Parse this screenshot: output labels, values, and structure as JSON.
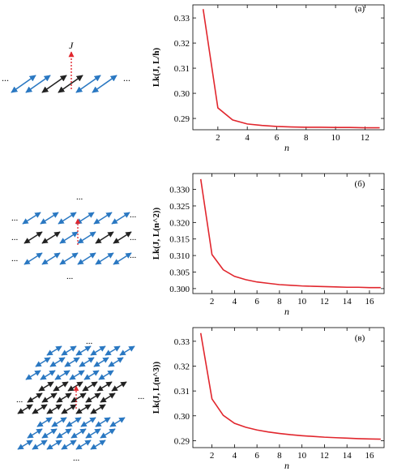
{
  "colors": {
    "curve": "#e1262d",
    "blue": "#2a78c2",
    "dark": "#222222",
    "red": "#e1262d",
    "axis": "#000000"
  },
  "lattice_labels": {
    "j_label": "J",
    "ellipsis": "..."
  },
  "chart_data": [
    {
      "type": "line",
      "panel_label": "(а)",
      "title": "",
      "xlabel": "n",
      "ylabel": "Lk(J, L/h)",
      "xlim": [
        0.3,
        13.3
      ],
      "ylim": [
        0.2855,
        0.3352
      ],
      "xticks": [
        2,
        4,
        6,
        8,
        10,
        12
      ],
      "yticks": [
        0.29,
        0.3,
        0.31,
        0.32,
        0.33
      ],
      "ytick_labels": [
        "0.29",
        "0.30",
        "0.31",
        "0.32",
        "0.33"
      ],
      "series": [
        {
          "x": [
            1,
            2,
            3,
            4,
            5,
            6,
            7,
            8,
            9,
            10,
            11,
            12,
            13
          ],
          "y": [
            0.3335,
            0.2942,
            0.2894,
            0.2878,
            0.2872,
            0.2868,
            0.2866,
            0.2865,
            0.2865,
            0.2864,
            0.2864,
            0.2863,
            0.2863
          ]
        }
      ]
    },
    {
      "type": "line",
      "panel_label": "(б)",
      "title": "",
      "xlabel": "n",
      "ylabel": "Lk(J, L(n^2))",
      "xlim": [
        0.3,
        17.3
      ],
      "ylim": [
        0.2985,
        0.3348
      ],
      "xticks": [
        2,
        4,
        6,
        8,
        10,
        12,
        14,
        16
      ],
      "yticks": [
        0.3,
        0.305,
        0.31,
        0.315,
        0.32,
        0.325,
        0.33
      ],
      "ytick_labels": [
        "0.300",
        "0.305",
        "0.310",
        "0.315",
        "0.320",
        "0.325",
        "0.330"
      ],
      "series": [
        {
          "x": [
            1,
            2,
            3,
            4,
            5,
            6,
            7,
            8,
            9,
            10,
            11,
            12,
            13,
            14,
            15,
            16,
            17
          ],
          "y": [
            0.3331,
            0.3103,
            0.3057,
            0.3037,
            0.3027,
            0.302,
            0.3016,
            0.3012,
            0.301,
            0.3008,
            0.3007,
            0.3006,
            0.3005,
            0.3004,
            0.3004,
            0.3003,
            0.3003
          ]
        }
      ]
    },
    {
      "type": "line",
      "panel_label": "(в)",
      "title": "",
      "xlabel": "n",
      "ylabel": "Lk(J, L(n^3))",
      "xlim": [
        0.3,
        17.3
      ],
      "ylim": [
        0.2872,
        0.3355
      ],
      "xticks": [
        2,
        4,
        6,
        8,
        10,
        12,
        14,
        16
      ],
      "yticks": [
        0.29,
        0.3,
        0.31,
        0.32,
        0.33
      ],
      "ytick_labels": [
        "0.29",
        "0.30",
        "0.31",
        "0.32",
        "0.33"
      ],
      "series": [
        {
          "x": [
            1,
            2,
            3,
            4,
            5,
            6,
            7,
            8,
            9,
            10,
            11,
            12,
            13,
            14,
            15,
            16,
            17
          ],
          "y": [
            0.3333,
            0.3068,
            0.3002,
            0.297,
            0.2954,
            0.2943,
            0.2935,
            0.2929,
            0.2924,
            0.292,
            0.2917,
            0.2914,
            0.2912,
            0.291,
            0.2908,
            0.2907,
            0.2906
          ]
        }
      ]
    }
  ]
}
